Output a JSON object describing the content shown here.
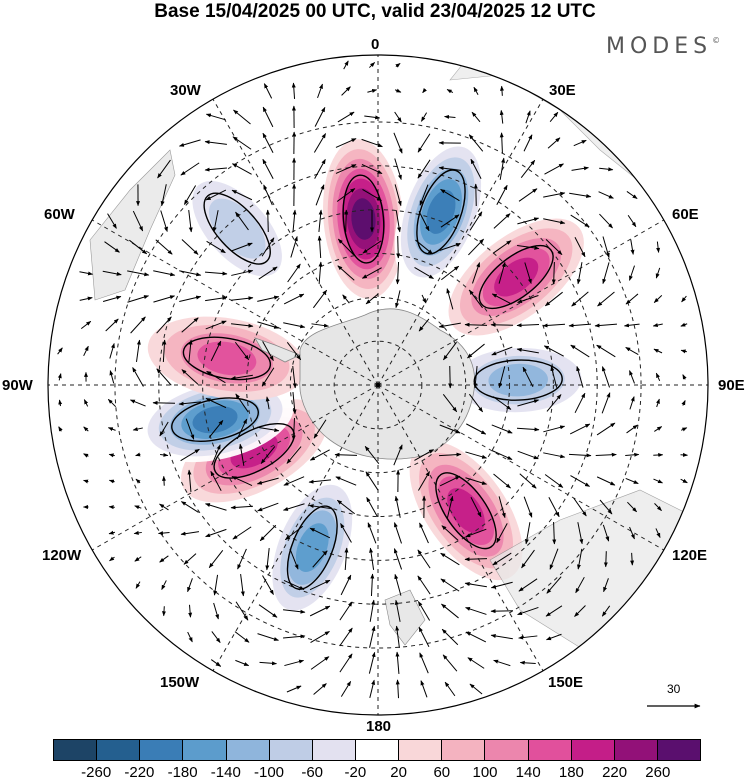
{
  "title": "Base 15/04/2025 00 UTC, valid 23/04/2025 12 UTC",
  "brand": "MODES",
  "brand_mark": "©",
  "longitude_labels": {
    "top": "0",
    "top_right": "30E",
    "right_upper": "60E",
    "right": "90E",
    "right_lower": "120E",
    "bottom_right": "150E",
    "bottom": "180",
    "bottom_left": "150W",
    "left_lower": "120W",
    "left": "90W",
    "left_upper": "60W",
    "top_left": "30W"
  },
  "vector_scale_label": "30",
  "colorbar": {
    "colors": [
      "#1d4466",
      "#245f8f",
      "#3a7db6",
      "#5c9ccc",
      "#8fb5dc",
      "#bfcde6",
      "#e3e1f0",
      "#ffffff",
      "#f9d7d9",
      "#f4b3c0",
      "#ec86ad",
      "#e1509c",
      "#c41e88",
      "#921178",
      "#5a0f6e"
    ],
    "ticks": [
      "-260",
      "-220",
      "-180",
      "-140",
      "-100",
      "-60",
      "-20",
      "20",
      "60",
      "100",
      "140",
      "180",
      "220",
      "260"
    ]
  },
  "anomaly_features": [
    {
      "type": "positive",
      "level": 220,
      "lat": -52,
      "lon": -5
    },
    {
      "type": "negative",
      "level": -180,
      "lat": -48,
      "lon": 20
    },
    {
      "type": "positive",
      "level": 140,
      "lat": -50,
      "lon": 52
    },
    {
      "type": "negative",
      "level": -100,
      "lat": -58,
      "lon": 88
    },
    {
      "type": "positive",
      "level": 140,
      "lat": -55,
      "lon": 145
    },
    {
      "type": "negative",
      "level": -140,
      "lat": -50,
      "lon": -158
    },
    {
      "type": "positive",
      "level": 140,
      "lat": -58,
      "lon": -118
    },
    {
      "type": "negative",
      "level": -180,
      "lat": -52,
      "lon": -102
    },
    {
      "type": "positive",
      "level": 100,
      "lat": -55,
      "lon": -80
    },
    {
      "type": "negative",
      "level": -60,
      "lat": -42,
      "lon": -42
    }
  ]
}
